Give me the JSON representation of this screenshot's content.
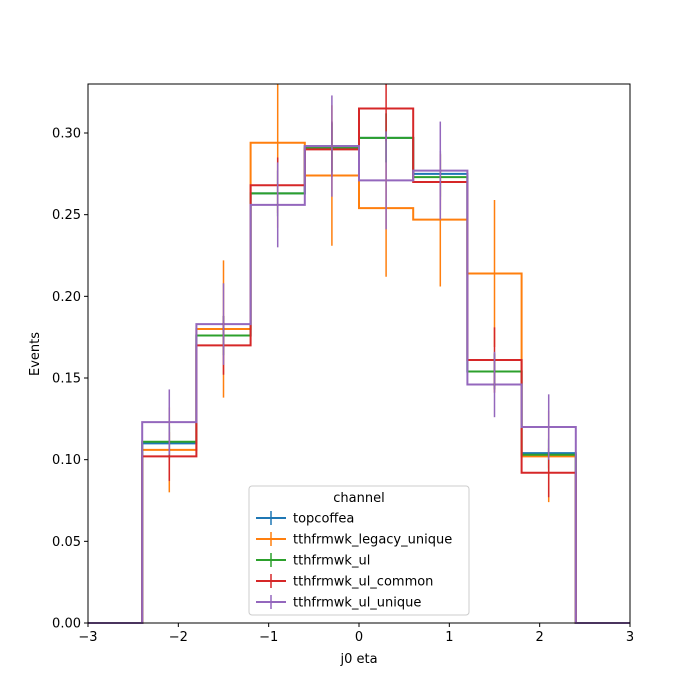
{
  "chart_data": {
    "type": "histogram-step",
    "xlabel": "j0 eta",
    "ylabel": "Events",
    "xlim": [
      -3,
      3
    ],
    "ylim": [
      0,
      0.33
    ],
    "xticks": [
      "−3",
      "−2",
      "−1",
      "0",
      "1",
      "2",
      "3"
    ],
    "xtick_values": [
      -3,
      -2,
      -1,
      0,
      1,
      2,
      3
    ],
    "yticks": [
      "0.00",
      "0.05",
      "0.10",
      "0.15",
      "0.20",
      "0.25",
      "0.30"
    ],
    "ytick_values": [
      0,
      0.05,
      0.1,
      0.15,
      0.2,
      0.25,
      0.3
    ],
    "bin_edges": [
      -3.0,
      -2.4,
      -1.8,
      -1.2,
      -0.6,
      0.0,
      0.6,
      1.2,
      1.8,
      2.4,
      3.0
    ],
    "legend_title": "channel",
    "legend_position": "lower center",
    "series": [
      {
        "name": "topcoffea",
        "color": "#1f77b4",
        "values": [
          0,
          0.11,
          0.176,
          0.263,
          0.292,
          0.297,
          0.275,
          0.154,
          0.104,
          0
        ],
        "errors": [
          0,
          0.01,
          0.012,
          0.014,
          0.015,
          0.015,
          0.014,
          0.011,
          0.009,
          0
        ]
      },
      {
        "name": "tthfrmwk_legacy_unique",
        "color": "#ff7f0e",
        "values": [
          0,
          0.106,
          0.18,
          0.294,
          0.274,
          0.254,
          0.247,
          0.214,
          0.102,
          0
        ],
        "errors": [
          0,
          0.026,
          0.042,
          0.052,
          0.043,
          0.042,
          0.041,
          0.045,
          0.028,
          0
        ]
      },
      {
        "name": "tthfrmwk_ul",
        "color": "#2ca02c",
        "values": [
          0,
          0.111,
          0.176,
          0.263,
          0.291,
          0.297,
          0.273,
          0.154,
          0.103,
          0
        ],
        "errors": [
          0,
          0.01,
          0.012,
          0.014,
          0.015,
          0.015,
          0.014,
          0.011,
          0.009,
          0
        ]
      },
      {
        "name": "tthfrmwk_ul_common",
        "color": "#d62728",
        "values": [
          0,
          0.102,
          0.17,
          0.268,
          0.29,
          0.315,
          0.27,
          0.161,
          0.092,
          0
        ],
        "errors": [
          0,
          0.015,
          0.018,
          0.017,
          0.017,
          0.02,
          0.017,
          0.02,
          0.015,
          0
        ]
      },
      {
        "name": "tthfrmwk_ul_unique",
        "color": "#9467bd",
        "values": [
          0,
          0.123,
          0.183,
          0.256,
          0.292,
          0.271,
          0.277,
          0.146,
          0.12,
          0
        ],
        "errors": [
          0,
          0.02,
          0.025,
          0.026,
          0.031,
          0.03,
          0.03,
          0.02,
          0.02,
          0
        ]
      }
    ]
  }
}
